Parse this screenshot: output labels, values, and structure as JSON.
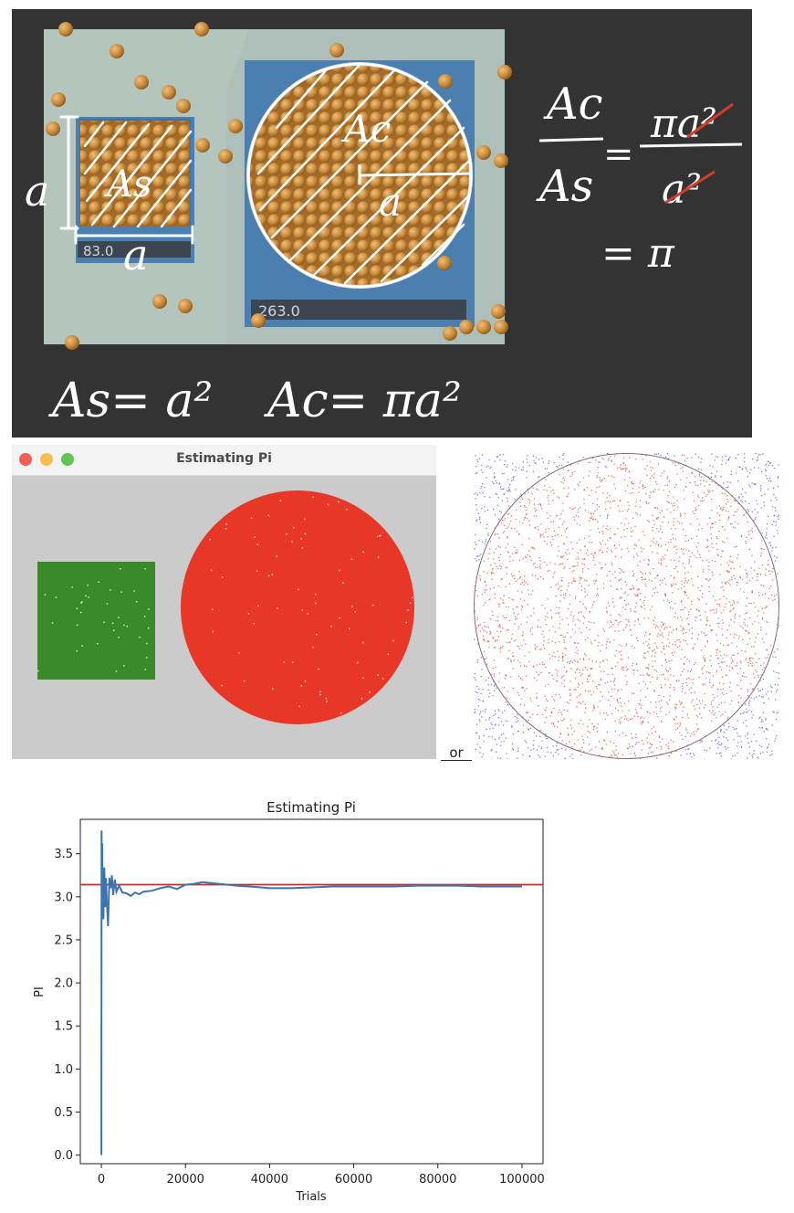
{
  "board": {
    "scale_small": "83.0",
    "scale_large": "263.0",
    "label_side": "a",
    "label_square_area": "As",
    "label_circle_area": "Ac",
    "label_radius": "a",
    "eq_ratio_left_num": "Ac",
    "eq_ratio_left_den": "As",
    "eq_equals": "=",
    "eq_ratio_right_num": "πa²",
    "eq_ratio_right_den": "a²",
    "eq_result": "= π",
    "eq_square_area": "As= a²",
    "eq_circle_area": "Ac= πa²",
    "colors": {
      "board": "#333333",
      "chalk": "#ffffff",
      "strike": "#d63a2a",
      "ball": "#c98a3a",
      "scale": "#4a7fb0"
    }
  },
  "window": {
    "title": "Estimating Pi",
    "colors": {
      "square": "#3a8a2a",
      "circle": "#e93727",
      "canvas": "#cbcbcb"
    }
  },
  "or_label": "or",
  "scatter": {
    "colors": {
      "inside": "#e24a3a",
      "outside": "#4a5ad8"
    }
  },
  "chart_data": {
    "type": "line",
    "title": "Estimating Pi",
    "xlabel": "Trials",
    "ylabel": "PI",
    "xlim": [
      -5000,
      105000
    ],
    "ylim": [
      -0.1,
      3.9
    ],
    "xticks": [
      0,
      20000,
      40000,
      60000,
      80000,
      100000
    ],
    "yticks": [
      0.0,
      0.5,
      1.0,
      1.5,
      2.0,
      2.5,
      3.0,
      3.5
    ],
    "xtick_labels": [
      "0",
      "20000",
      "40000",
      "60000",
      "80000",
      "100000"
    ],
    "ytick_labels": [
      "0.0",
      "0.5",
      "1.0",
      "1.5",
      "2.0",
      "2.5",
      "3.0",
      "3.5"
    ],
    "reference_line": {
      "y": 3.14159,
      "color": "#d62728"
    },
    "series": [
      {
        "color": "#3b75af",
        "x": [
          1,
          50,
          100,
          200,
          300,
          500,
          700,
          900,
          1100,
          1300,
          1600,
          1900,
          2200,
          2500,
          2800,
          3200,
          3600,
          4200,
          5000,
          6000,
          7000,
          8000,
          9000,
          10000,
          12000,
          14000,
          16000,
          18000,
          20000,
          22000,
          24000,
          26000,
          28000,
          30000,
          32000,
          35000,
          38000,
          40000,
          45000,
          50000,
          55000,
          60000,
          65000,
          70000,
          75000,
          80000,
          85000,
          90000,
          95000,
          100000
        ],
        "y": [
          0.0,
          3.77,
          3.45,
          3.62,
          3.0,
          2.74,
          3.34,
          2.88,
          3.22,
          2.95,
          2.66,
          3.22,
          3.1,
          3.25,
          3.02,
          3.2,
          3.06,
          3.13,
          3.05,
          3.04,
          3.01,
          3.05,
          3.03,
          3.06,
          3.07,
          3.1,
          3.12,
          3.09,
          3.14,
          3.15,
          3.17,
          3.16,
          3.15,
          3.14,
          3.13,
          3.12,
          3.11,
          3.1,
          3.1,
          3.11,
          3.12,
          3.12,
          3.12,
          3.12,
          3.13,
          3.13,
          3.13,
          3.12,
          3.12,
          3.12
        ]
      }
    ]
  }
}
